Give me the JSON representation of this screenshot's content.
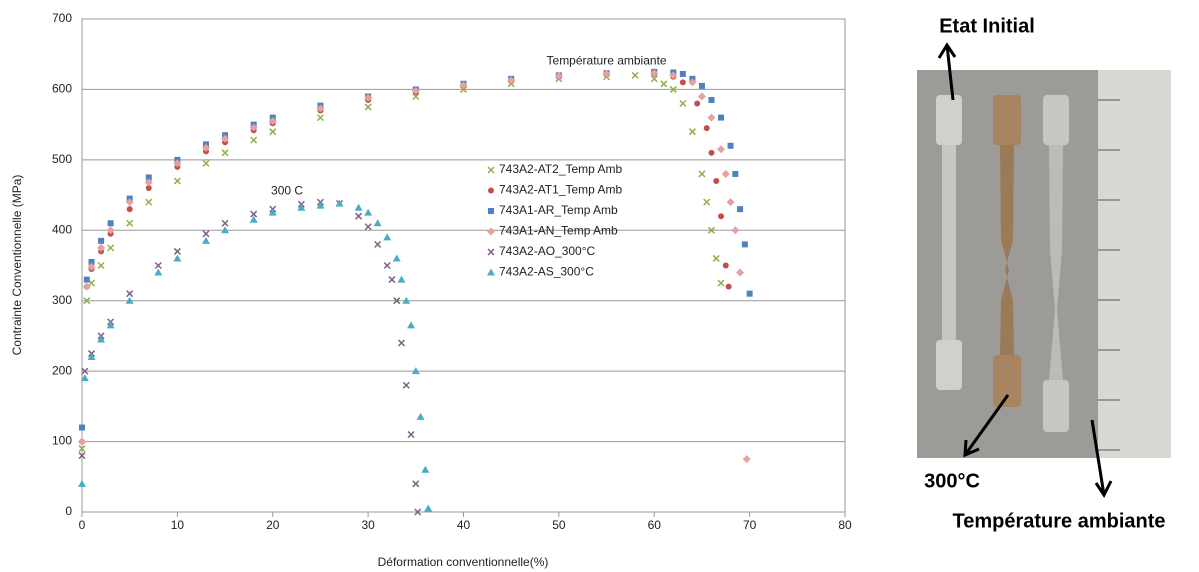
{
  "chart_data": {
    "type": "scatter",
    "xlabel": "Déformation conventionnelle(%)",
    "ylabel": "Contrainte Conventionnelle (MPa)",
    "annotations": [
      "Température ambiante",
      "300 C"
    ],
    "xlim": [
      0,
      80
    ],
    "xticks": [
      0,
      10,
      20,
      30,
      40,
      50,
      60,
      70,
      80
    ],
    "ylim": [
      0,
      700
    ],
    "yticks": [
      0,
      100,
      200,
      300,
      400,
      500,
      600,
      700
    ],
    "grid": true,
    "series": [
      {
        "name": "743A2-AT2_Temp Amb",
        "color": "#8db04a",
        "marker": "x",
        "x": [
          0,
          0.5,
          1,
          2,
          3,
          5,
          7,
          10,
          13,
          15,
          18,
          20,
          25,
          30,
          35,
          40,
          45,
          50,
          55,
          58,
          60,
          61,
          62,
          63,
          64,
          65,
          65.5,
          66,
          66.5,
          67
        ],
        "y": [
          90,
          300,
          325,
          350,
          375,
          410,
          440,
          470,
          495,
          510,
          528,
          540,
          560,
          575,
          590,
          600,
          608,
          615,
          618,
          620,
          615,
          608,
          600,
          580,
          540,
          480,
          440,
          400,
          360,
          325
        ]
      },
      {
        "name": "743A2-AT1_Temp Amb",
        "color": "#c0504d",
        "marker": "circle",
        "x": [
          0,
          0.5,
          1,
          2,
          3,
          5,
          7,
          10,
          13,
          15,
          18,
          20,
          25,
          30,
          35,
          40,
          45,
          50,
          55,
          60,
          62,
          63,
          64.5,
          65.5,
          66,
          66.5,
          67,
          67.5,
          67.8
        ],
        "y": [
          100,
          320,
          345,
          370,
          395,
          430,
          460,
          490,
          512,
          525,
          542,
          552,
          570,
          585,
          596,
          605,
          612,
          618,
          621,
          622,
          618,
          610,
          580,
          545,
          510,
          470,
          420,
          350,
          320
        ]
      },
      {
        "name": "743A1-AR_Temp Amb",
        "color": "#4f81bd",
        "marker": "square",
        "x": [
          0,
          0.5,
          1,
          2,
          3,
          5,
          7,
          10,
          13,
          15,
          18,
          20,
          25,
          30,
          35,
          40,
          45,
          50,
          55,
          60,
          62,
          63,
          64,
          65,
          66,
          67,
          68,
          68.5,
          69,
          69.5,
          70
        ],
        "y": [
          120,
          330,
          355,
          385,
          410,
          445,
          475,
          500,
          522,
          535,
          550,
          560,
          577,
          590,
          600,
          608,
          615,
          620,
          623,
          625,
          624,
          622,
          615,
          605,
          585,
          560,
          520,
          480,
          430,
          380,
          310
        ]
      },
      {
        "name": "743A1-AN_Temp Amb",
        "color": "#e6a0a0",
        "marker": "diamond",
        "x": [
          0,
          0.5,
          1,
          2,
          3,
          5,
          7,
          10,
          13,
          15,
          18,
          20,
          25,
          30,
          35,
          40,
          45,
          50,
          55,
          60,
          62,
          64,
          65,
          66,
          67,
          67.5,
          68,
          68.5,
          69,
          69.7
        ],
        "y": [
          100,
          320,
          348,
          375,
          400,
          440,
          468,
          495,
          517,
          530,
          546,
          555,
          573,
          588,
          598,
          606,
          613,
          619,
          622,
          623,
          620,
          610,
          590,
          560,
          515,
          480,
          440,
          400,
          340,
          75
        ]
      },
      {
        "name": "743A2-AO_300°C",
        "color": "#7f6084",
        "marker": "x",
        "x": [
          0,
          0.3,
          1,
          2,
          3,
          5,
          8,
          10,
          13,
          15,
          18,
          20,
          23,
          25,
          27,
          29,
          30,
          31,
          32,
          32.5,
          33,
          33.5,
          34,
          34.5,
          35,
          35.2
        ],
        "y": [
          80,
          200,
          225,
          250,
          270,
          310,
          350,
          370,
          395,
          410,
          423,
          430,
          437,
          440,
          438,
          420,
          405,
          380,
          350,
          330,
          300,
          240,
          180,
          110,
          40,
          0
        ]
      },
      {
        "name": "743A2-AS_300°C",
        "color": "#4bacc6",
        "marker": "triangle",
        "x": [
          0,
          0.3,
          1,
          2,
          3,
          5,
          8,
          10,
          13,
          15,
          18,
          20,
          23,
          25,
          27,
          29,
          30,
          31,
          32,
          33,
          33.5,
          34,
          34.5,
          35,
          35.5,
          36,
          36.3
        ],
        "y": [
          40,
          190,
          220,
          245,
          265,
          300,
          340,
          360,
          385,
          400,
          415,
          425,
          432,
          435,
          438,
          432,
          425,
          410,
          390,
          360,
          330,
          300,
          265,
          200,
          135,
          60,
          5
        ]
      }
    ]
  },
  "photo": {
    "labels": [
      "Etat Initial",
      "300°C",
      "Température ambiante"
    ]
  }
}
